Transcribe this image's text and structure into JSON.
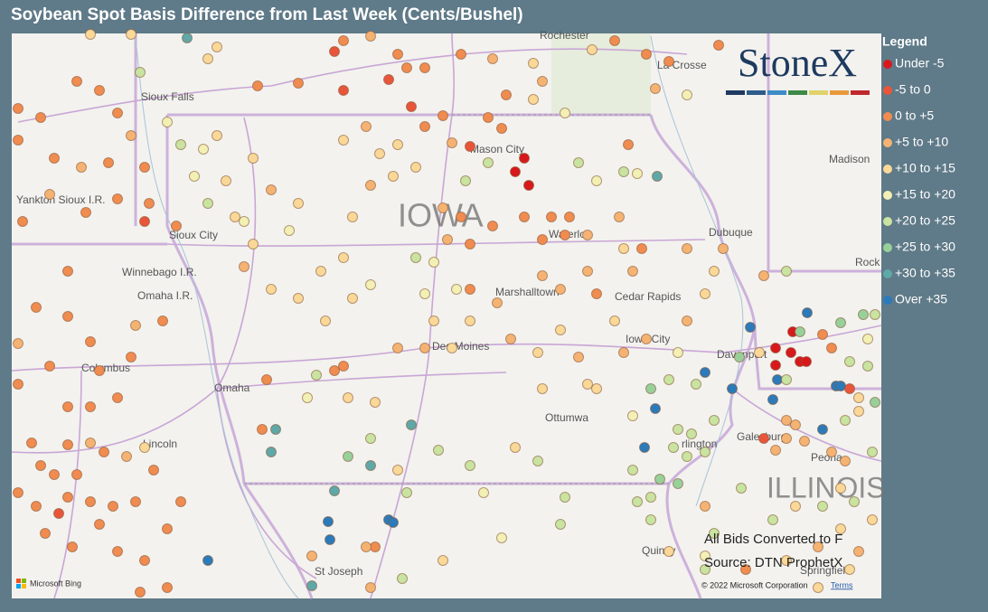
{
  "header": {
    "title": "Soybean Spot Basis Difference from Last Week (Cents/Bushel)"
  },
  "legend": {
    "title": "Legend",
    "items": [
      {
        "label": "Under -5",
        "color": "#d7191c"
      },
      {
        "label": "-5 to 0",
        "color": "#e8553a"
      },
      {
        "label": "0 to +5",
        "color": "#f08c50"
      },
      {
        "label": "+5 to +10",
        "color": "#f5b373"
      },
      {
        "label": "+10 to +15",
        "color": "#fad898"
      },
      {
        "label": "+15 to +20",
        "color": "#f2f0b4"
      },
      {
        "label": "+20 to +25",
        "color": "#c8e4a0"
      },
      {
        "label": "+25 to +30",
        "color": "#98d09a"
      },
      {
        "label": "+30 to +35",
        "color": "#5fa8a8"
      },
      {
        "label": "Over +35",
        "color": "#2b7bba"
      }
    ]
  },
  "map": {
    "logo": "StoneX",
    "state_label": "IOWA",
    "state_label_2": "ILLINOIS",
    "cities": [
      "Rochester",
      "La Crosse",
      "Sioux Falls",
      "Mason City",
      "Waterloo",
      "Dubuque",
      "Madison",
      "Sioux City",
      "Winnebago I.R.",
      "Omaha I.R.",
      "Marshalltown",
      "Cedar Rapids",
      "Iowa City",
      "Davenport",
      "Des Moines",
      "Columbus",
      "Omaha",
      "Ottumwa",
      "Lincoln",
      "Galesburg",
      "Peoria",
      "St Joseph",
      "Quincy",
      "Rock",
      "rlington",
      "Yankton Sioux I.R.",
      "Springfield"
    ],
    "note_1": "All Bids Converted to F",
    "note_2": "Source: DTN ProphetX",
    "copyright": "© 2022 Microsoft Corporation",
    "terms": "Terms",
    "provider": "Microsoft Bing"
  }
}
